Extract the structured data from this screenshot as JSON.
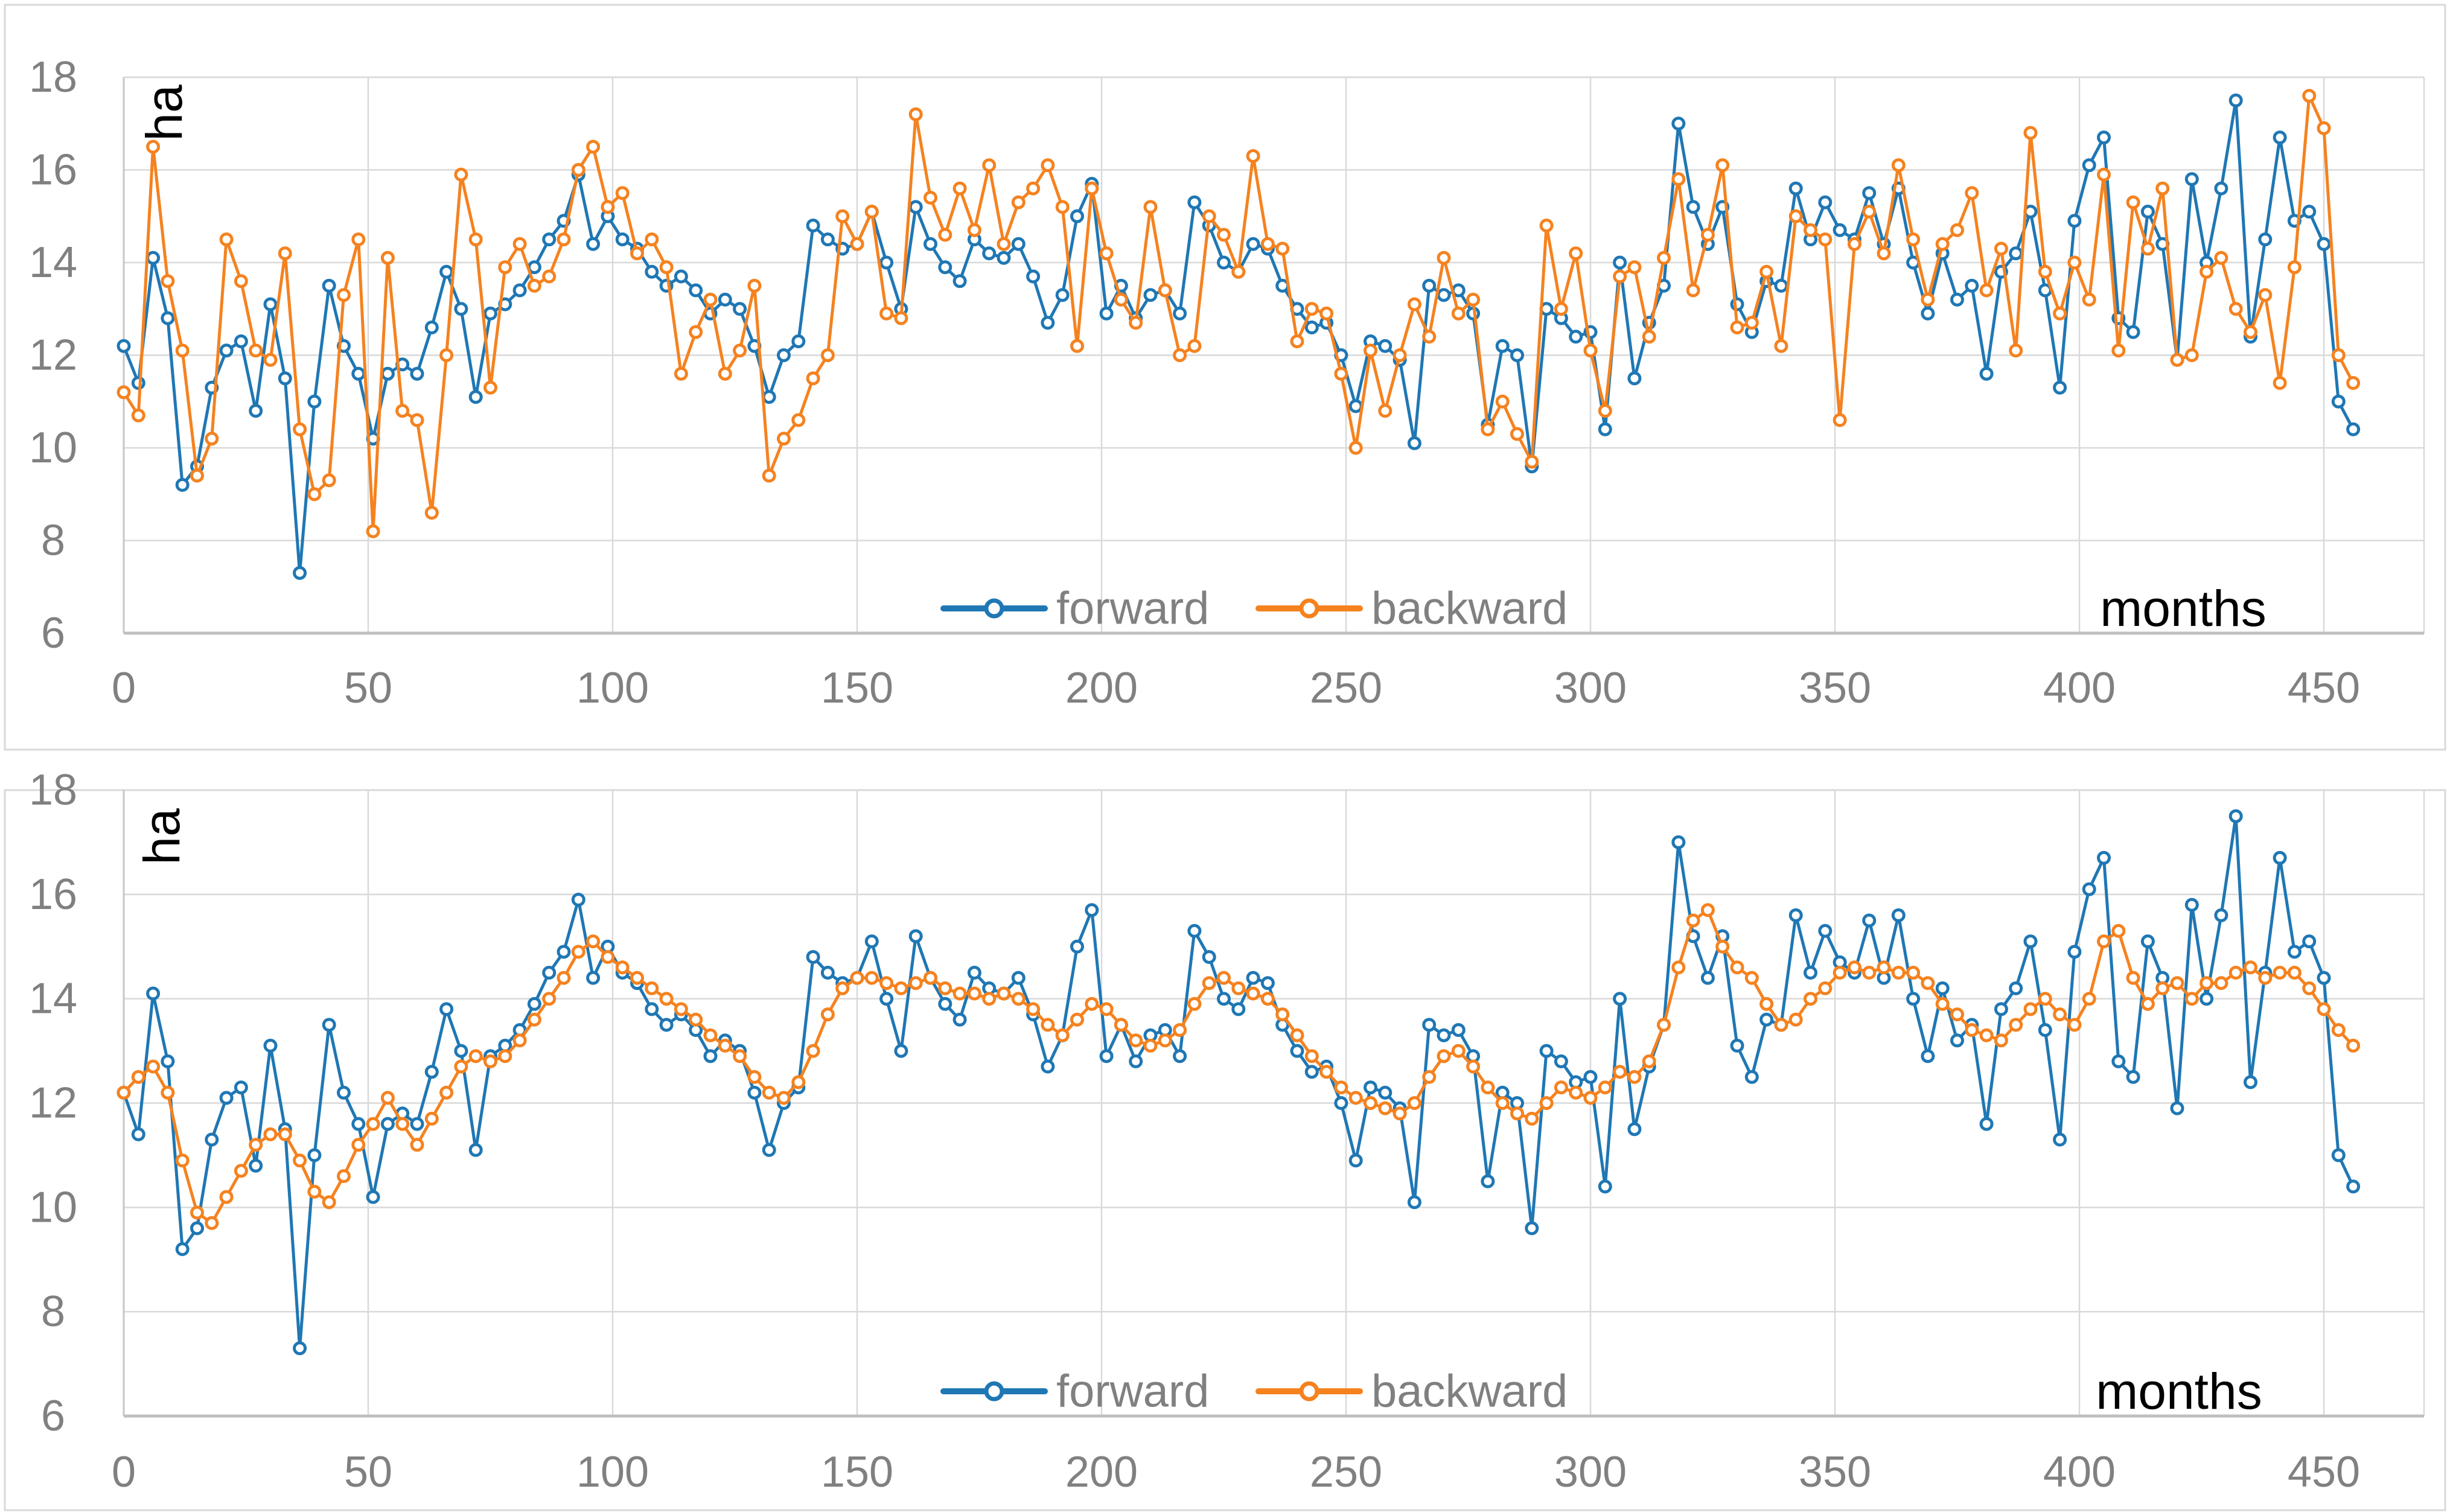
{
  "figure": {
    "description_note": "",
    "y_axis_title": "ha",
    "x_axis_title": "months",
    "colors": {
      "forward": "#1F77B4",
      "backward": "#F5821F",
      "grid": "#D9D9D9",
      "axis": "#BFBFBF",
      "tick_text": "#808080",
      "legend_text": "#808080"
    }
  },
  "chart_data": [
    {
      "type": "line",
      "ylabel": "ha",
      "xlabel": "months",
      "ylim": [
        6,
        18
      ],
      "y_ticks": [
        18,
        16,
        14,
        12,
        10,
        8,
        6
      ],
      "x_ticks": [
        0,
        50,
        100,
        150,
        200,
        250,
        300,
        350,
        400,
        450
      ],
      "x_start": 0,
      "x_step": 3,
      "grid": true,
      "legend_position": "bottom-center-inside",
      "legend": [
        "forward",
        "backward"
      ],
      "series": [
        {
          "name": "forward",
          "color": "#1F77B4",
          "values": [
            12.2,
            11.4,
            14.1,
            12.8,
            9.2,
            9.6,
            11.3,
            12.1,
            12.3,
            10.8,
            13.1,
            11.5,
            7.3,
            11.0,
            13.5,
            12.2,
            11.6,
            10.2,
            11.6,
            11.8,
            11.6,
            12.6,
            13.8,
            13.0,
            11.1,
            12.9,
            13.1,
            13.4,
            13.9,
            14.5,
            14.9,
            15.9,
            14.4,
            15.0,
            14.5,
            14.3,
            13.8,
            13.5,
            13.7,
            13.4,
            12.9,
            13.2,
            13.0,
            12.2,
            11.1,
            12.0,
            12.3,
            14.8,
            14.5,
            14.3,
            14.4,
            15.1,
            14.0,
            13.0,
            15.2,
            14.4,
            13.9,
            13.6,
            14.5,
            14.2,
            14.1,
            14.4,
            13.7,
            12.7,
            13.3,
            15.0,
            15.7,
            12.9,
            13.5,
            12.8,
            13.3,
            13.4,
            12.9,
            15.3,
            14.8,
            14.0,
            13.8,
            14.4,
            14.3,
            13.5,
            13.0,
            12.6,
            12.7,
            12.0,
            10.9,
            12.3,
            12.2,
            11.9,
            10.1,
            13.5,
            13.3,
            13.4,
            12.9,
            10.5,
            12.2,
            12.0,
            9.6,
            13.0,
            12.8,
            12.4,
            12.5,
            10.4,
            14.0,
            11.5,
            12.7,
            13.5,
            17.0,
            15.2,
            14.4,
            15.2,
            13.1,
            12.5,
            13.6,
            13.5,
            15.6,
            14.5,
            15.3,
            14.7,
            14.5,
            15.5,
            14.4,
            15.6,
            14.0,
            12.9,
            14.2,
            13.2,
            13.5,
            11.6,
            13.8,
            14.2,
            15.1,
            13.4,
            11.3,
            14.9,
            16.1,
            16.7,
            12.8,
            12.5,
            15.1,
            14.4,
            11.9,
            15.8,
            14.0,
            15.6,
            17.5,
            12.4,
            14.5,
            16.7,
            14.9,
            15.1,
            14.4,
            11.0,
            10.4
          ]
        },
        {
          "name": "backward",
          "color": "#F5821F",
          "values": [
            11.2,
            10.7,
            16.5,
            13.6,
            12.1,
            9.4,
            10.2,
            14.5,
            13.6,
            12.1,
            11.9,
            14.2,
            10.4,
            9.0,
            9.3,
            13.3,
            14.5,
            8.2,
            14.1,
            10.8,
            10.6,
            8.6,
            12.0,
            15.9,
            14.5,
            11.3,
            13.9,
            14.4,
            13.5,
            13.7,
            14.5,
            16.0,
            16.5,
            15.2,
            15.5,
            14.2,
            14.5,
            13.9,
            11.6,
            12.5,
            13.2,
            11.6,
            12.1,
            13.5,
            9.4,
            10.2,
            10.6,
            11.5,
            12.0,
            15.0,
            14.4,
            15.1,
            12.9,
            12.8,
            17.2,
            15.4,
            14.6,
            15.6,
            14.7,
            16.1,
            14.4,
            15.3,
            15.6,
            16.1,
            15.2,
            12.2,
            15.6,
            14.2,
            13.2,
            12.7,
            15.2,
            13.4,
            12.0,
            12.2,
            15.0,
            14.6,
            13.8,
            16.3,
            14.4,
            14.3,
            12.3,
            13.0,
            12.9,
            11.6,
            10.0,
            12.1,
            10.8,
            12.0,
            13.1,
            12.4,
            14.1,
            12.9,
            13.2,
            10.4,
            11.0,
            10.3,
            9.7,
            14.8,
            13.0,
            14.2,
            12.1,
            10.8,
            13.7,
            13.9,
            12.4,
            14.1,
            15.8,
            13.4,
            14.6,
            16.1,
            12.6,
            12.7,
            13.8,
            12.2,
            15.0,
            14.7,
            14.5,
            10.6,
            14.4,
            15.1,
            14.2,
            16.1,
            14.5,
            13.2,
            14.4,
            14.7,
            15.5,
            13.4,
            14.3,
            12.1,
            16.8,
            13.8,
            12.9,
            14.0,
            13.2,
            15.9,
            12.1,
            15.3,
            14.3,
            15.6,
            11.9,
            12.0,
            13.8,
            14.1,
            13.0,
            12.5,
            13.3,
            11.4,
            13.9,
            17.6,
            16.9,
            12.0,
            11.4
          ]
        }
      ]
    },
    {
      "type": "line",
      "ylabel": "ha",
      "xlabel": "months",
      "ylim": [
        6,
        18
      ],
      "y_ticks": [
        18,
        16,
        14,
        12,
        10,
        8,
        6
      ],
      "x_ticks": [
        0,
        50,
        100,
        150,
        200,
        250,
        300,
        350,
        400,
        450
      ],
      "x_start": 0,
      "x_step": 3,
      "grid": true,
      "legend_position": "bottom-center-inside",
      "legend": [
        "forward",
        "backward"
      ],
      "series": [
        {
          "name": "forward",
          "color": "#1F77B4",
          "values": [
            12.2,
            11.4,
            14.1,
            12.8,
            9.2,
            9.6,
            11.3,
            12.1,
            12.3,
            10.8,
            13.1,
            11.5,
            7.3,
            11.0,
            13.5,
            12.2,
            11.6,
            10.2,
            11.6,
            11.8,
            11.6,
            12.6,
            13.8,
            13.0,
            11.1,
            12.9,
            13.1,
            13.4,
            13.9,
            14.5,
            14.9,
            15.9,
            14.4,
            15.0,
            14.5,
            14.3,
            13.8,
            13.5,
            13.7,
            13.4,
            12.9,
            13.2,
            13.0,
            12.2,
            11.1,
            12.0,
            12.3,
            14.8,
            14.5,
            14.3,
            14.4,
            15.1,
            14.0,
            13.0,
            15.2,
            14.4,
            13.9,
            13.6,
            14.5,
            14.2,
            14.1,
            14.4,
            13.7,
            12.7,
            13.3,
            15.0,
            15.7,
            12.9,
            13.5,
            12.8,
            13.3,
            13.4,
            12.9,
            15.3,
            14.8,
            14.0,
            13.8,
            14.4,
            14.3,
            13.5,
            13.0,
            12.6,
            12.7,
            12.0,
            10.9,
            12.3,
            12.2,
            11.9,
            10.1,
            13.5,
            13.3,
            13.4,
            12.9,
            10.5,
            12.2,
            12.0,
            9.6,
            13.0,
            12.8,
            12.4,
            12.5,
            10.4,
            14.0,
            11.5,
            12.7,
            13.5,
            17.0,
            15.2,
            14.4,
            15.2,
            13.1,
            12.5,
            13.6,
            13.5,
            15.6,
            14.5,
            15.3,
            14.7,
            14.5,
            15.5,
            14.4,
            15.6,
            14.0,
            12.9,
            14.2,
            13.2,
            13.5,
            11.6,
            13.8,
            14.2,
            15.1,
            13.4,
            11.3,
            14.9,
            16.1,
            16.7,
            12.8,
            12.5,
            15.1,
            14.4,
            11.9,
            15.8,
            14.0,
            15.6,
            17.5,
            12.4,
            14.5,
            16.7,
            14.9,
            15.1,
            14.4,
            11.0,
            10.4
          ]
        },
        {
          "name": "backward",
          "color": "#F5821F",
          "values": [
            12.2,
            12.5,
            12.7,
            12.2,
            10.9,
            9.9,
            9.7,
            10.2,
            10.7,
            11.2,
            11.4,
            11.4,
            10.9,
            10.3,
            10.1,
            10.6,
            11.2,
            11.6,
            12.1,
            11.6,
            11.2,
            11.7,
            12.2,
            12.7,
            12.9,
            12.8,
            12.9,
            13.2,
            13.6,
            14.0,
            14.4,
            14.9,
            15.1,
            14.8,
            14.6,
            14.4,
            14.2,
            14.0,
            13.8,
            13.6,
            13.3,
            13.1,
            12.9,
            12.5,
            12.2,
            12.1,
            12.4,
            13.0,
            13.7,
            14.2,
            14.4,
            14.4,
            14.3,
            14.2,
            14.3,
            14.4,
            14.2,
            14.1,
            14.1,
            14.0,
            14.1,
            14.0,
            13.8,
            13.5,
            13.3,
            13.6,
            13.9,
            13.8,
            13.5,
            13.2,
            13.1,
            13.2,
            13.4,
            13.9,
            14.3,
            14.4,
            14.2,
            14.1,
            14.0,
            13.7,
            13.3,
            12.9,
            12.6,
            12.3,
            12.1,
            12.0,
            11.9,
            11.8,
            12.0,
            12.5,
            12.9,
            13.0,
            12.7,
            12.3,
            12.0,
            11.8,
            11.7,
            12.0,
            12.3,
            12.2,
            12.1,
            12.3,
            12.6,
            12.5,
            12.8,
            13.5,
            14.6,
            15.5,
            15.7,
            15.0,
            14.6,
            14.4,
            13.9,
            13.5,
            13.6,
            14.0,
            14.2,
            14.5,
            14.6,
            14.5,
            14.6,
            14.5,
            14.5,
            14.3,
            13.9,
            13.7,
            13.4,
            13.3,
            13.2,
            13.5,
            13.8,
            14.0,
            13.7,
            13.5,
            14.0,
            15.1,
            15.3,
            14.4,
            13.9,
            14.2,
            14.3,
            14.0,
            14.3,
            14.3,
            14.5,
            14.6,
            14.4,
            14.5,
            14.5,
            14.2,
            13.8,
            13.4,
            13.1
          ]
        }
      ]
    }
  ]
}
